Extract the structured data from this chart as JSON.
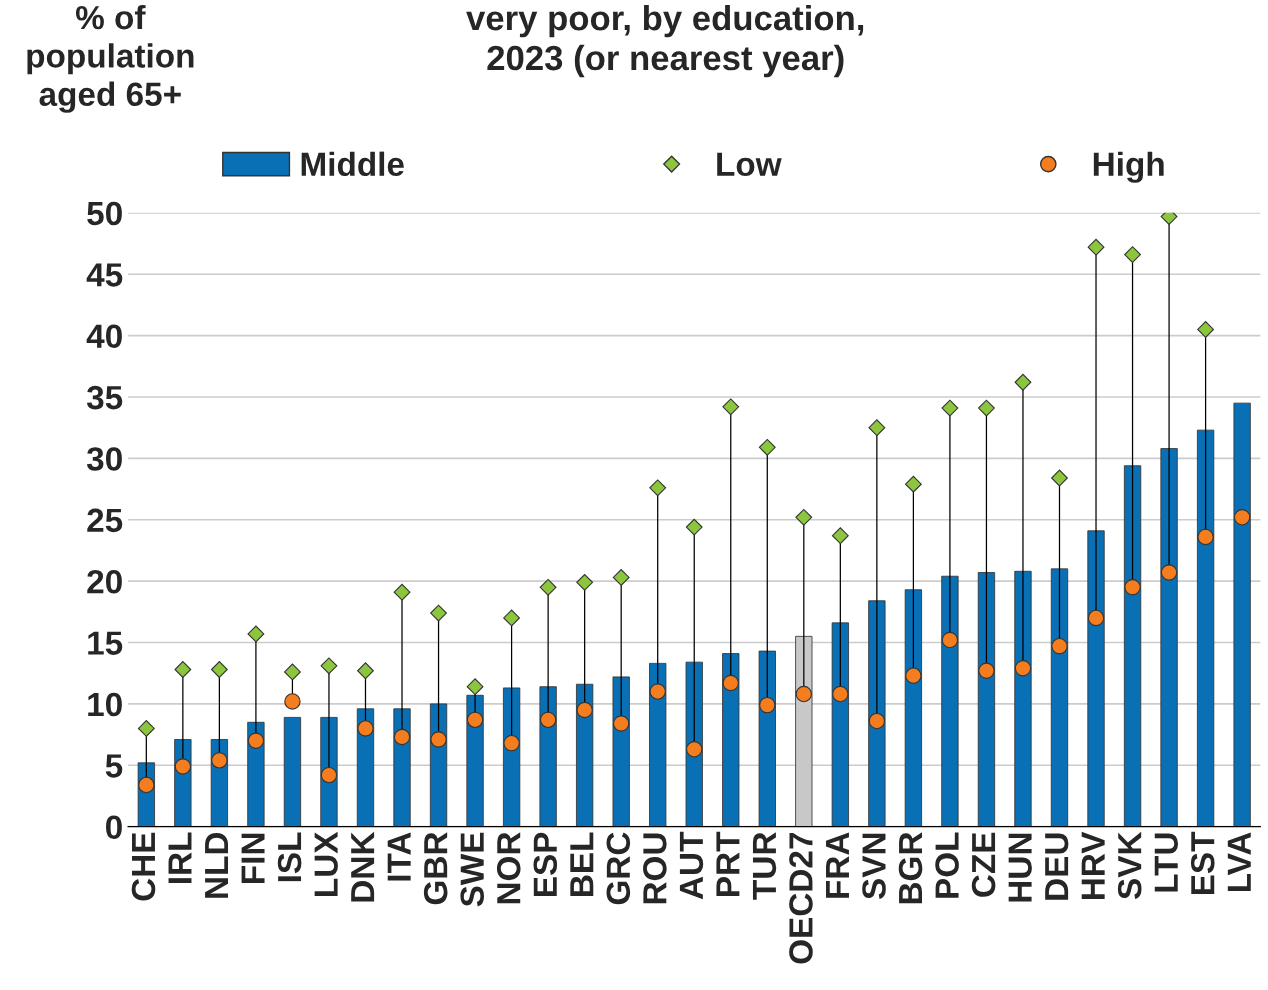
{
  "chart_data": {
    "type": "bar",
    "title": "very poor, by education,\n2023 (or nearest year)",
    "ylabel": "% of\npopulation\naged 65+",
    "categories": [
      "CHE",
      "IRL",
      "NLD",
      "FIN",
      "ISL",
      "LUX",
      "DNK",
      "ITA",
      "GBR",
      "SWE",
      "NOR",
      "ESP",
      "BEL",
      "GRC",
      "ROU",
      "AUT",
      "PRT",
      "TUR",
      "OECD27",
      "FRA",
      "SVN",
      "BGR",
      "POL",
      "CZE",
      "HUN",
      "DEU",
      "HRV",
      "SVK",
      "LTU",
      "EST",
      "LVA"
    ],
    "series": [
      {
        "name": "Middle",
        "color": "#0a70b5",
        "colors": [
          "#0a70b5",
          "#0a70b5",
          "#0a70b5",
          "#0a70b5",
          "#0a70b5",
          "#0a70b5",
          "#0a70b5",
          "#0a70b5",
          "#0a70b5",
          "#0a70b5",
          "#0a70b5",
          "#0a70b5",
          "#0a70b5",
          "#0a70b5",
          "#0a70b5",
          "#0a70b5",
          "#0a70b5",
          "#0a70b5",
          "#c8c8c8",
          "#0a70b5",
          "#0a70b5",
          "#0a70b5",
          "#0a70b5",
          "#0a70b5",
          "#0a70b5",
          "#0a70b5",
          "#0a70b5",
          "#0a70b5",
          "#0a70b5",
          "#0a70b5",
          "#0a70b5"
        ],
        "values": [
          5.2,
          7.1,
          7.1,
          8.5,
          8.9,
          8.9,
          9.6,
          9.6,
          10.0,
          10.7,
          11.3,
          11.4,
          11.6,
          12.2,
          13.3,
          13.4,
          14.1,
          14.3,
          15.5,
          16.6,
          18.4,
          19.3,
          20.4,
          20.7,
          20.8,
          21.0,
          24.1,
          29.4,
          30.8,
          32.3,
          34.5
        ]
      },
      {
        "name": "Low",
        "type": "scatter",
        "marker": "diamond",
        "color": "#8cc63f",
        "values": [
          8.0,
          12.8,
          12.8,
          15.7,
          12.6,
          13.1,
          12.7,
          19.1,
          17.4,
          11.4,
          17.0,
          19.5,
          19.9,
          20.3,
          27.6,
          24.4,
          34.2,
          30.9,
          25.2,
          23.7,
          32.5,
          27.9,
          34.1,
          34.1,
          36.2,
          28.4,
          47.2,
          46.6,
          49.7,
          40.5,
          null
        ]
      },
      {
        "name": "High",
        "type": "scatter",
        "marker": "circle",
        "color": "#f47d20",
        "values": [
          3.4,
          4.9,
          5.4,
          7.0,
          10.2,
          4.2,
          8.0,
          7.3,
          7.1,
          8.7,
          6.8,
          8.7,
          9.5,
          8.4,
          11.0,
          6.3,
          11.7,
          9.9,
          10.8,
          10.8,
          8.6,
          12.3,
          15.2,
          12.7,
          12.9,
          14.7,
          17.0,
          19.5,
          20.7,
          23.6,
          25.2
        ]
      }
    ],
    "ylim": [
      0,
      50
    ],
    "yticks": [
      0,
      5,
      10,
      15,
      20,
      25,
      30,
      35,
      40,
      45,
      50
    ],
    "grid": "y",
    "legend": "top"
  }
}
